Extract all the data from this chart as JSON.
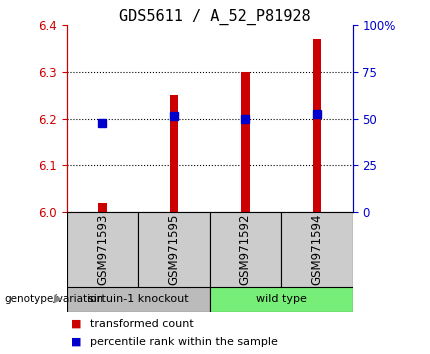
{
  "title": "GDS5611 / A_52_P81928",
  "samples": [
    "GSM971593",
    "GSM971595",
    "GSM971592",
    "GSM971594"
  ],
  "red_values": [
    6.02,
    6.25,
    6.3,
    6.37
  ],
  "blue_values": [
    6.19,
    6.205,
    6.2,
    6.21
  ],
  "ylim_left": [
    6.0,
    6.4
  ],
  "ylim_right": [
    0,
    100
  ],
  "yticks_left": [
    6.0,
    6.1,
    6.2,
    6.3,
    6.4
  ],
  "yticks_right": [
    0,
    25,
    50,
    75,
    100
  ],
  "ytick_labels_right": [
    "0",
    "25",
    "50",
    "75",
    "100%"
  ],
  "groups": [
    {
      "label": "sirtuin-1 knockout",
      "samples_idx": [
        0,
        1
      ],
      "color": "#bbbbbb"
    },
    {
      "label": "wild type",
      "samples_idx": [
        2,
        3
      ],
      "color": "#77ee77"
    }
  ],
  "bar_color": "#cc0000",
  "marker_color": "#0000cc",
  "bar_width": 0.12,
  "marker_size": 6,
  "legend_red_label": "transformed count",
  "legend_blue_label": "percentile rank within the sample",
  "genotype_label": "genotype/variation",
  "left_tick_color": "#cc0000",
  "right_tick_color": "#0000cc",
  "title_fontsize": 11,
  "tick_fontsize": 8.5,
  "legend_fontsize": 8,
  "sample_box_color": "#cccccc",
  "dotted_yticks": [
    6.1,
    6.2,
    6.3
  ]
}
